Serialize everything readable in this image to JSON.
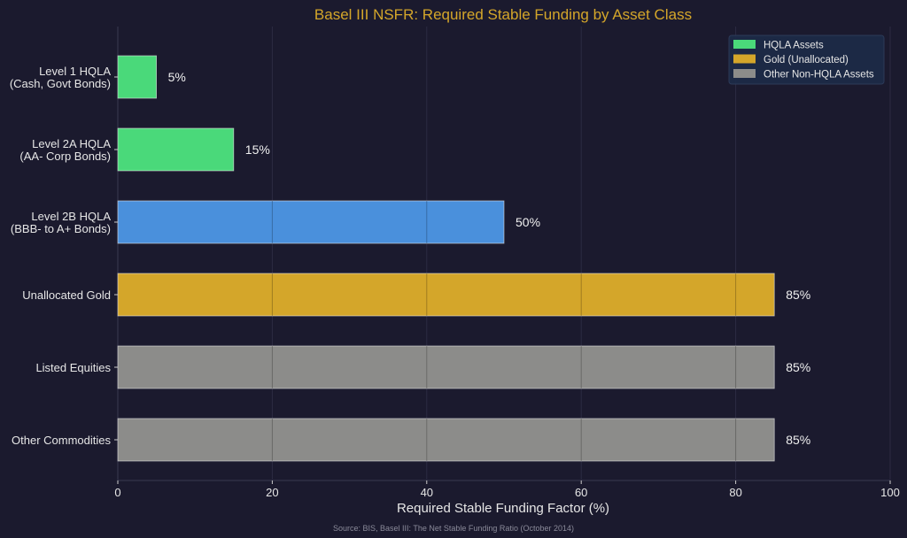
{
  "chart_data": {
    "type": "bar",
    "orientation": "horizontal",
    "title": "Basel III NSFR: Required Stable Funding by Asset Class",
    "xlabel": "Required Stable Funding Factor (%)",
    "ylabel": "",
    "xlim": [
      0,
      100
    ],
    "xticks": [
      0,
      20,
      40,
      60,
      80,
      100
    ],
    "grid": true,
    "legend_position": "bottom-right",
    "source": "Source: BIS, Basel III: The Net Stable Funding Ratio (October 2014)",
    "categories": [
      [
        "Level 1 HQLA",
        "(Cash, Govt Bonds)"
      ],
      [
        "Level 2A HQLA",
        "(AA- Corp Bonds)"
      ],
      [
        "Level 2B HQLA",
        "(BBB- to A+ Bonds)"
      ],
      [
        "Unallocated Gold"
      ],
      [
        "Listed Equities"
      ],
      [
        "Other Commodities"
      ]
    ],
    "values": [
      5,
      15,
      50,
      85,
      85,
      85
    ],
    "data_labels": [
      "5%",
      "15%",
      "50%",
      "85%",
      "85%",
      "85%"
    ],
    "bar_colors": [
      "#4ad97a",
      "#4ad97a",
      "#4a90dc",
      "#d4a62a",
      "#8c8c8a",
      "#8c8c8a"
    ],
    "legend": [
      {
        "label": "HQLA Assets",
        "color": "#4ad97a"
      },
      {
        "label": "Gold (Unallocated)",
        "color": "#d4a62a"
      },
      {
        "label": "Other Non-HQLA Assets",
        "color": "#8c8c8a"
      }
    ],
    "colors": {
      "background": "#1b1a2e",
      "title": "#d4a62a",
      "text": "#e6e6e6"
    }
  }
}
